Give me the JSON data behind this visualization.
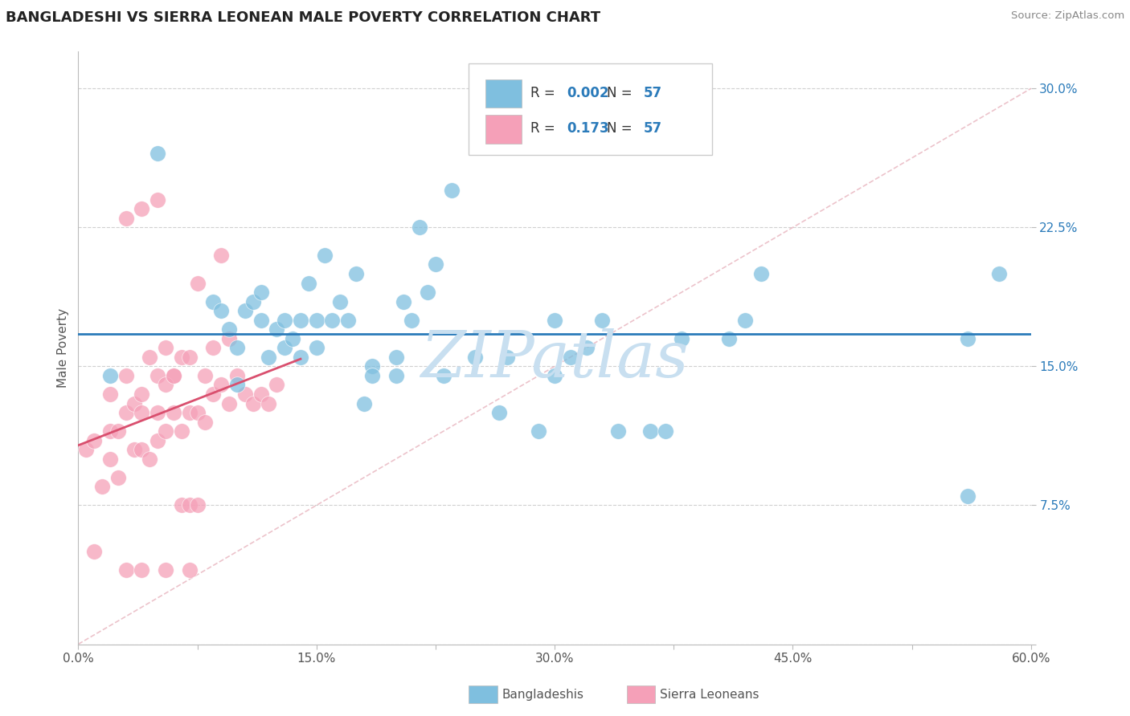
{
  "title": "BANGLADESHI VS SIERRA LEONEAN MALE POVERTY CORRELATION CHART",
  "source": "Source: ZipAtlas.com",
  "ylabel": "Male Poverty",
  "xlim": [
    0.0,
    0.6
  ],
  "ylim": [
    0.0,
    0.32
  ],
  "xticks": [
    0.0,
    0.075,
    0.15,
    0.225,
    0.3,
    0.375,
    0.45,
    0.525,
    0.6
  ],
  "xticklabels": [
    "0.0%",
    "",
    "15.0%",
    "",
    "30.0%",
    "",
    "45.0%",
    "",
    "60.0%"
  ],
  "yticks": [
    0.0,
    0.075,
    0.15,
    0.225,
    0.3
  ],
  "yticklabels": [
    "",
    "7.5%",
    "15.0%",
    "22.5%",
    "30.0%"
  ],
  "legend_R_blue": "0.002",
  "legend_R_pink": "0.173",
  "legend_N": "57",
  "blue_color": "#7fbfdf",
  "pink_color": "#f5a0b8",
  "blue_line_color": "#2b7bba",
  "pink_line_color": "#d94f6e",
  "watermark": "ZIPatlas",
  "watermark_color": "#c8dff0",
  "bangladeshi_x": [
    0.02,
    0.05,
    0.085,
    0.09,
    0.095,
    0.1,
    0.1,
    0.105,
    0.11,
    0.115,
    0.115,
    0.12,
    0.125,
    0.13,
    0.13,
    0.135,
    0.14,
    0.14,
    0.145,
    0.15,
    0.15,
    0.155,
    0.16,
    0.165,
    0.17,
    0.175,
    0.18,
    0.185,
    0.2,
    0.205,
    0.21,
    0.215,
    0.22,
    0.225,
    0.235,
    0.25,
    0.265,
    0.27,
    0.29,
    0.31,
    0.32,
    0.33,
    0.34,
    0.36,
    0.37,
    0.3,
    0.3,
    0.38,
    0.41,
    0.42,
    0.43,
    0.2,
    0.185,
    0.23,
    0.56,
    0.56,
    0.58
  ],
  "bangladeshi_y": [
    0.145,
    0.265,
    0.185,
    0.18,
    0.17,
    0.14,
    0.16,
    0.18,
    0.185,
    0.175,
    0.19,
    0.155,
    0.17,
    0.16,
    0.175,
    0.165,
    0.155,
    0.175,
    0.195,
    0.16,
    0.175,
    0.21,
    0.175,
    0.185,
    0.175,
    0.2,
    0.13,
    0.15,
    0.155,
    0.185,
    0.175,
    0.225,
    0.19,
    0.205,
    0.245,
    0.155,
    0.125,
    0.155,
    0.115,
    0.155,
    0.16,
    0.175,
    0.115,
    0.115,
    0.115,
    0.175,
    0.145,
    0.165,
    0.165,
    0.175,
    0.2,
    0.145,
    0.145,
    0.145,
    0.08,
    0.165,
    0.2
  ],
  "sierralone_x": [
    0.005,
    0.01,
    0.01,
    0.015,
    0.02,
    0.02,
    0.02,
    0.025,
    0.025,
    0.03,
    0.03,
    0.035,
    0.035,
    0.04,
    0.04,
    0.04,
    0.045,
    0.045,
    0.05,
    0.05,
    0.05,
    0.055,
    0.055,
    0.06,
    0.06,
    0.065,
    0.065,
    0.07,
    0.07,
    0.075,
    0.075,
    0.08,
    0.08,
    0.085,
    0.085,
    0.09,
    0.09,
    0.095,
    0.095,
    0.1,
    0.105,
    0.11,
    0.115,
    0.12,
    0.125,
    0.03,
    0.04,
    0.05,
    0.055,
    0.06,
    0.065,
    0.07,
    0.075,
    0.03,
    0.04,
    0.055,
    0.07
  ],
  "sierralone_y": [
    0.105,
    0.11,
    0.05,
    0.085,
    0.1,
    0.115,
    0.135,
    0.09,
    0.115,
    0.125,
    0.145,
    0.105,
    0.13,
    0.105,
    0.125,
    0.135,
    0.1,
    0.155,
    0.11,
    0.125,
    0.145,
    0.115,
    0.16,
    0.125,
    0.145,
    0.115,
    0.155,
    0.125,
    0.155,
    0.125,
    0.195,
    0.12,
    0.145,
    0.135,
    0.16,
    0.14,
    0.21,
    0.13,
    0.165,
    0.145,
    0.135,
    0.13,
    0.135,
    0.13,
    0.14,
    0.23,
    0.235,
    0.24,
    0.14,
    0.145,
    0.075,
    0.075,
    0.075,
    0.04,
    0.04,
    0.04,
    0.04
  ]
}
